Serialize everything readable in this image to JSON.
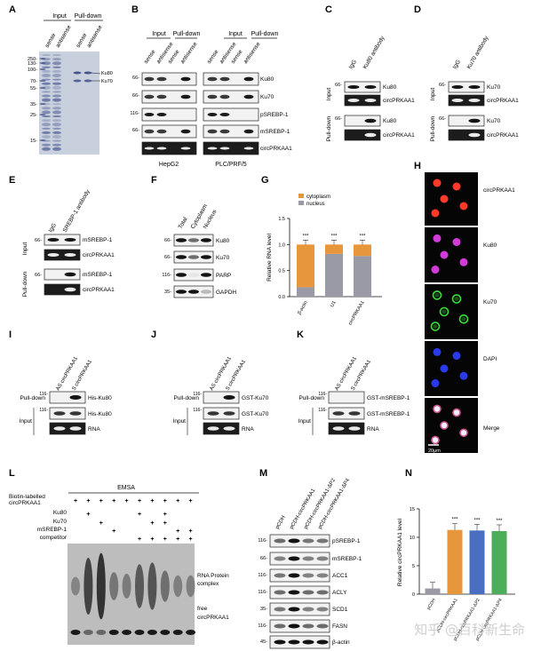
{
  "panels": [
    "A",
    "B",
    "C",
    "D",
    "E",
    "F",
    "G",
    "H",
    "I",
    "J",
    "K",
    "L",
    "M",
    "N"
  ],
  "panel_a": {
    "groups": [
      "Input",
      "Pull-down"
    ],
    "lanes": [
      "sense",
      "antisense",
      "sense",
      "antisense"
    ],
    "markers": [
      "250-",
      "130-",
      "100-",
      "70-",
      "55-",
      "35-",
      "25-",
      "15-"
    ],
    "bands": [
      "Ku80",
      "Ku70"
    ]
  },
  "panel_b": {
    "groups": [
      "Input",
      "Pull-down",
      "Input",
      "Pull-down"
    ],
    "lanes": [
      "sense",
      "antisense",
      "sense",
      "antisense",
      "sense",
      "antisense",
      "sense",
      "antisense"
    ],
    "rows": [
      "Ku80",
      "Ku70",
      "pSREBP-1",
      "mSREBP-1",
      "circPRKAA1"
    ],
    "markers": [
      "66-",
      "66-",
      "116-",
      "66-"
    ],
    "cells": [
      "HepG2",
      "PLC/PRF/5"
    ]
  },
  "panel_c": {
    "lanes": [
      "IgG",
      "Ku80 antibody"
    ],
    "sections": [
      "Input",
      "Pull-down"
    ],
    "rows": [
      "Ku80",
      "circPRKAA1",
      "Ku80",
      "circPRKAA1"
    ],
    "marker": "66-"
  },
  "panel_d": {
    "lanes": [
      "IgG",
      "Ku70 antibody"
    ],
    "sections": [
      "Input",
      "Pull-down"
    ],
    "rows": [
      "Ku70",
      "circPRKAA1",
      "Ku70",
      "circPRKAA1"
    ],
    "marker": "66-"
  },
  "panel_e": {
    "lanes": [
      "IgG",
      "SREBP-1 antibody"
    ],
    "sections": [
      "Input",
      "Pull-down"
    ],
    "rows": [
      "mSREBP-1",
      "circPRKAA1",
      "mSREBP-1",
      "circPRKAA1"
    ],
    "marker": "66-"
  },
  "panel_f": {
    "lanes": [
      "Total",
      "Cytoplasm",
      "Nucleus"
    ],
    "rows": [
      "Ku80",
      "Ku70",
      "PARP",
      "GAPDH"
    ],
    "markers": [
      "66-",
      "66-",
      "116-",
      "35-"
    ]
  },
  "chart_data": {
    "type": "bar",
    "stacked": true,
    "categories": [
      "β-actin",
      "U1",
      "circPRKAA1"
    ],
    "series": [
      {
        "name": "cytoplasm",
        "values": [
          0.82,
          0.18,
          0.22
        ]
      },
      {
        "name": "nucleus",
        "values": [
          0.18,
          0.82,
          0.78
        ]
      }
    ],
    "ylabel": "Relative RNA level",
    "ylim": [
      0,
      1.5
    ],
    "yticks": [
      "0.0",
      "0.5",
      "1.0",
      "1.5"
    ],
    "significance": [
      "***",
      "***",
      "***"
    ],
    "legend_position": "top",
    "colors": {
      "cytoplasm": "#e8963c",
      "nucleus": "#9a9aa6"
    }
  },
  "panel_h": {
    "labels": [
      "circPRKAA1",
      "Ku80",
      "Ku70",
      "DAPI",
      "Merge"
    ],
    "scale_bar": "20μm"
  },
  "panel_i": {
    "lanes": [
      "AS circPRKAA1",
      "S circPRKAA1"
    ],
    "sections": [
      "Pull-down",
      "Input"
    ],
    "rows": [
      "His-Ku80",
      "His-Ku80",
      "RNA"
    ],
    "markers": [
      "116-",
      "116-"
    ]
  },
  "panel_j": {
    "lanes": [
      "AS circPRKAA1",
      "S circPRKAA1"
    ],
    "sections": [
      "Pull-down",
      "Input"
    ],
    "rows": [
      "GST-Ku70",
      "GST-Ku70",
      "RNA"
    ],
    "markers": [
      "116-",
      "116-"
    ]
  },
  "panel_k": {
    "lanes": [
      "AS circPRKAA1",
      "S circPRKAA1"
    ],
    "sections": [
      "Pull-down",
      "Input"
    ],
    "rows": [
      "GST-mSREBP-1",
      "GST-mSREBP-1",
      "RNA"
    ],
    "markers": [
      "116-",
      "116-"
    ]
  },
  "panel_l": {
    "title": "EMSA",
    "conditions": [
      "Biotin-labelled",
      "circPRKAA1",
      "Ku80",
      "Ku70",
      "mSREBP-1",
      "competitor"
    ],
    "bands": [
      "RNA Protein",
      "complex",
      "free",
      "circPRKAA1"
    ],
    "matrix": [
      "+ + + + + + + + + +",
      "+ . . . + . + .",
      ". + . . . + + .",
      ". . + . . . . +",
      ". . . + + + + +"
    ]
  },
  "panel_m": {
    "lanes": [
      "pCDH",
      "pCDH-circPRKAA1",
      "pCDH-circPRKAA1-ΔP2",
      "pCDH-circPRKAA1-ΔP4"
    ],
    "rows": [
      "pSREBP-1",
      "mSREBP-1",
      "ACC1",
      "ACLY",
      "SCD1",
      "FASN",
      "β-actin"
    ],
    "markers": [
      "116-",
      "66-",
      "116-",
      "116-",
      "35-",
      "116-",
      "45-"
    ]
  },
  "panel_n": {
    "type": "bar",
    "categories": [
      "pCDH",
      "pCDH-circPRKAA1",
      "pCDH-circPRKAA1-ΔP2",
      "pCDH-circPRKAA1-ΔP4"
    ],
    "values": [
      1.0,
      11.3,
      11.2,
      11.1
    ],
    "ylabel": "Relative circPRKAA1 level",
    "ylim": [
      0,
      15
    ],
    "yticks": [
      "0",
      "5",
      "10",
      "15"
    ],
    "significance": [
      "",
      "***",
      "***",
      "***"
    ],
    "colors": [
      "#9a9aa6",
      "#e8963c",
      "#4a6fc0",
      "#4cae5a"
    ]
  },
  "watermark": "知乎 @百科新生命"
}
